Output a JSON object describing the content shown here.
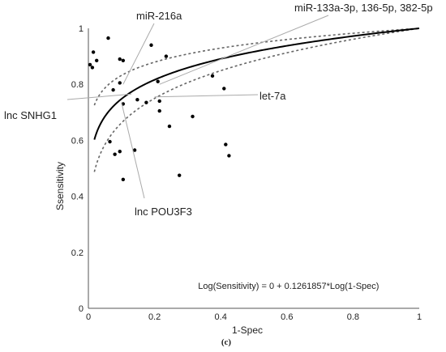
{
  "chart_data": {
    "type": "scatter",
    "xlabel": "1-Spec",
    "ylabel": "Ssensitivity",
    "xlim": [
      0,
      1
    ],
    "ylim": [
      0,
      1
    ],
    "x_ticks": [
      "0",
      "0.2",
      "0.4",
      "0.6",
      "0.8",
      "1"
    ],
    "y_ticks": [
      "0",
      "0.2",
      "0.4",
      "0.6",
      "0.8",
      "1"
    ],
    "grid": false,
    "equation": "Log(Sensitivity) = 0 + 0.1261857*Log(1-Spec)",
    "panel_label": "(c)",
    "fit": {
      "exponent": 0.1261857,
      "ci_upper_exponent": 0.08,
      "ci_lower_exponent": 0.179
    },
    "points": [
      {
        "x": 0.005,
        "y": 0.87
      },
      {
        "x": 0.012,
        "y": 0.86
      },
      {
        "x": 0.015,
        "y": 0.915
      },
      {
        "x": 0.025,
        "y": 0.885
      },
      {
        "x": 0.06,
        "y": 0.965
      },
      {
        "x": 0.075,
        "y": 0.78
      },
      {
        "x": 0.095,
        "y": 0.805
      },
      {
        "x": 0.095,
        "y": 0.89
      },
      {
        "x": 0.105,
        "y": 0.885
      },
      {
        "x": 0.105,
        "y": 0.73
      },
      {
        "x": 0.105,
        "y": 0.46
      },
      {
        "x": 0.095,
        "y": 0.56
      },
      {
        "x": 0.08,
        "y": 0.55
      },
      {
        "x": 0.065,
        "y": 0.595
      },
      {
        "x": 0.14,
        "y": 0.565
      },
      {
        "x": 0.148,
        "y": 0.745
      },
      {
        "x": 0.175,
        "y": 0.735
      },
      {
        "x": 0.19,
        "y": 0.94
      },
      {
        "x": 0.21,
        "y": 0.81
      },
      {
        "x": 0.215,
        "y": 0.74
      },
      {
        "x": 0.215,
        "y": 0.705
      },
      {
        "x": 0.235,
        "y": 0.9
      },
      {
        "x": 0.245,
        "y": 0.65
      },
      {
        "x": 0.275,
        "y": 0.475
      },
      {
        "x": 0.315,
        "y": 0.685
      },
      {
        "x": 0.375,
        "y": 0.83
      },
      {
        "x": 0.41,
        "y": 0.785
      },
      {
        "x": 0.415,
        "y": 0.585
      },
      {
        "x": 0.425,
        "y": 0.545
      }
    ],
    "annotations": [
      {
        "text": "miR-216a",
        "target": {
          "x": 0.105,
          "y": 0.8
        }
      },
      {
        "text": "miR-133a-3p, 136-5p, 382-5p",
        "target": {
          "x": 0.215,
          "y": 0.8
        }
      },
      {
        "text": "lnc SNHG1",
        "target": {
          "x": 0.13,
          "y": 0.765
        }
      },
      {
        "text": "let-7a",
        "target": {
          "x": 0.2,
          "y": 0.755
        }
      },
      {
        "text": "lnc POU3F3",
        "target": {
          "x": 0.1,
          "y": 0.735
        }
      }
    ]
  }
}
